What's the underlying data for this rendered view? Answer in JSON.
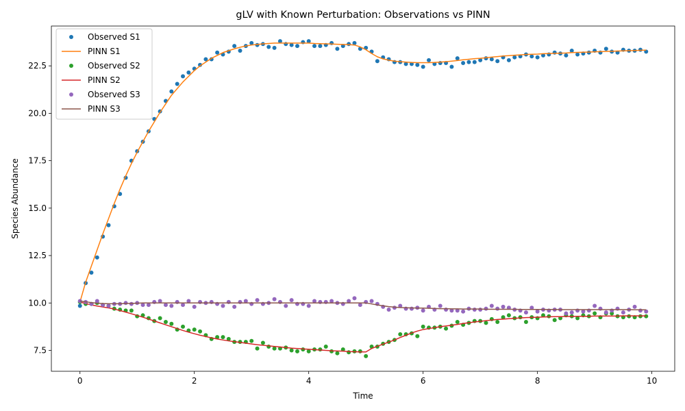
{
  "chart_data": {
    "type": "scatter",
    "title": "gLV with Known Perturbation: Observations vs PINN",
    "xlabel": "Time",
    "ylabel": "Species Abundance",
    "xlim": [
      -0.5,
      10.4
    ],
    "ylim": [
      6.4,
      24.6
    ],
    "xticks": [
      0,
      2,
      4,
      6,
      8,
      10
    ],
    "xtick_labels": [
      "0",
      "2",
      "4",
      "6",
      "8",
      "10"
    ],
    "yticks": [
      7.5,
      10.0,
      12.5,
      15.0,
      17.5,
      20.0,
      22.5
    ],
    "ytick_labels": [
      "7.5",
      "10.0",
      "12.5",
      "15.0",
      "17.5",
      "20.0",
      "22.5"
    ],
    "grid": false,
    "legend_position": "upper-left",
    "legend": [
      {
        "label": "Observed S1",
        "kind": "marker",
        "color": "#1f77b4"
      },
      {
        "label": "PINN S1",
        "kind": "line",
        "color": "#ff7f0e"
      },
      {
        "label": "Observed S2",
        "kind": "marker",
        "color": "#2ca02c"
      },
      {
        "label": "PINN S2",
        "kind": "line",
        "color": "#d62728"
      },
      {
        "label": "Observed S3",
        "kind": "marker",
        "color": "#9467bd"
      },
      {
        "label": "PINN S3",
        "kind": "line",
        "color": "#8c564b"
      }
    ],
    "x": [
      0.0,
      0.1,
      0.2,
      0.3,
      0.4,
      0.5,
      0.6,
      0.7,
      0.8,
      0.9,
      1.0,
      1.1,
      1.2,
      1.3,
      1.4,
      1.5,
      1.6,
      1.7,
      1.8,
      1.9,
      2.0,
      2.1,
      2.2,
      2.3,
      2.4,
      2.5,
      2.6,
      2.7,
      2.8,
      2.9,
      3.0,
      3.1,
      3.2,
      3.3,
      3.4,
      3.5,
      3.6,
      3.7,
      3.8,
      3.9,
      4.0,
      4.1,
      4.2,
      4.3,
      4.4,
      4.5,
      4.6,
      4.7,
      4.8,
      4.9,
      5.0,
      5.1,
      5.2,
      5.3,
      5.4,
      5.5,
      5.6,
      5.7,
      5.8,
      5.9,
      6.0,
      6.1,
      6.2,
      6.3,
      6.4,
      6.5,
      6.6,
      6.7,
      6.8,
      6.9,
      7.0,
      7.1,
      7.2,
      7.3,
      7.4,
      7.5,
      7.6,
      7.7,
      7.8,
      7.9,
      8.0,
      8.1,
      8.2,
      8.3,
      8.4,
      8.5,
      8.6,
      8.7,
      8.8,
      8.9,
      9.0,
      9.1,
      9.2,
      9.3,
      9.4,
      9.5,
      9.6,
      9.7,
      9.8,
      9.9
    ],
    "series": [
      {
        "name": "Observed S1",
        "kind": "marker",
        "color": "#1f77b4",
        "values": [
          9.85,
          11.05,
          11.6,
          12.4,
          13.5,
          14.1,
          15.1,
          15.75,
          16.6,
          17.5,
          18.0,
          18.5,
          19.05,
          19.7,
          20.1,
          20.65,
          21.15,
          21.55,
          21.95,
          22.15,
          22.35,
          22.55,
          22.85,
          22.85,
          23.2,
          23.1,
          23.25,
          23.55,
          23.3,
          23.55,
          23.7,
          23.6,
          23.65,
          23.5,
          23.45,
          23.8,
          23.65,
          23.6,
          23.55,
          23.75,
          23.8,
          23.55,
          23.55,
          23.6,
          23.7,
          23.4,
          23.55,
          23.65,
          23.7,
          23.4,
          23.45,
          23.25,
          22.75,
          22.95,
          22.85,
          22.7,
          22.7,
          22.6,
          22.6,
          22.55,
          22.45,
          22.8,
          22.6,
          22.65,
          22.65,
          22.45,
          22.9,
          22.65,
          22.7,
          22.7,
          22.8,
          22.9,
          22.85,
          22.75,
          22.95,
          22.8,
          22.95,
          23.0,
          23.1,
          23.0,
          22.95,
          23.05,
          23.1,
          23.2,
          23.15,
          23.05,
          23.3,
          23.1,
          23.15,
          23.2,
          23.3,
          23.2,
          23.4,
          23.25,
          23.2,
          23.35,
          23.3,
          23.3,
          23.35,
          23.25
        ]
      },
      {
        "name": "PINN S1",
        "kind": "line",
        "color": "#ff7f0e",
        "values": [
          10.05,
          11.1,
          11.95,
          12.8,
          13.65,
          14.45,
          15.25,
          16.0,
          16.7,
          17.35,
          17.95,
          18.5,
          19.05,
          19.55,
          20.05,
          20.5,
          20.95,
          21.3,
          21.65,
          21.95,
          22.25,
          22.5,
          22.7,
          22.9,
          23.05,
          23.2,
          23.3,
          23.4,
          23.48,
          23.55,
          23.6,
          23.63,
          23.66,
          23.68,
          23.7,
          23.7,
          23.7,
          23.7,
          23.7,
          23.7,
          23.7,
          23.68,
          23.67,
          23.66,
          23.65,
          23.64,
          23.63,
          23.62,
          23.6,
          23.5,
          23.35,
          23.15,
          22.98,
          22.87,
          22.8,
          22.75,
          22.72,
          22.7,
          22.68,
          22.67,
          22.67,
          22.67,
          22.68,
          22.7,
          22.72,
          22.75,
          22.78,
          22.82,
          22.85,
          22.88,
          22.9,
          22.93,
          22.96,
          22.99,
          23.02,
          23.04,
          23.06,
          23.08,
          23.1,
          23.11,
          23.12,
          23.14,
          23.15,
          23.16,
          23.17,
          23.18,
          23.2,
          23.21,
          23.22,
          23.23,
          23.24,
          23.25,
          23.26,
          23.27,
          23.28,
          23.29,
          23.3,
          23.31,
          23.32,
          23.33
        ]
      },
      {
        "name": "Observed S2",
        "kind": "marker",
        "color": "#2ca02c",
        "values": [
          10.05,
          9.95,
          9.95,
          10.0,
          9.9,
          9.85,
          9.7,
          9.65,
          9.6,
          9.6,
          9.3,
          9.35,
          9.2,
          9.05,
          9.2,
          9.0,
          8.9,
          8.6,
          8.75,
          8.55,
          8.6,
          8.5,
          8.3,
          8.1,
          8.2,
          8.2,
          8.1,
          7.95,
          7.95,
          7.95,
          8.0,
          7.6,
          7.9,
          7.7,
          7.6,
          7.6,
          7.65,
          7.5,
          7.45,
          7.55,
          7.45,
          7.55,
          7.55,
          7.7,
          7.45,
          7.35,
          7.55,
          7.4,
          7.45,
          7.45,
          7.2,
          7.7,
          7.7,
          7.85,
          7.95,
          8.05,
          8.35,
          8.35,
          8.4,
          8.25,
          8.75,
          8.7,
          8.7,
          8.75,
          8.65,
          8.8,
          9.0,
          8.85,
          8.95,
          9.05,
          9.05,
          8.95,
          9.15,
          9.0,
          9.25,
          9.35,
          9.2,
          9.25,
          9.0,
          9.25,
          9.2,
          9.35,
          9.3,
          9.1,
          9.2,
          9.35,
          9.3,
          9.2,
          9.35,
          9.3,
          9.45,
          9.25,
          9.45,
          9.45,
          9.3,
          9.25,
          9.3,
          9.25,
          9.3,
          9.3
        ]
      },
      {
        "name": "PINN S2",
        "kind": "line",
        "color": "#d62728",
        "values": [
          10.05,
          9.97,
          9.9,
          9.84,
          9.79,
          9.74,
          9.68,
          9.6,
          9.52,
          9.43,
          9.34,
          9.25,
          9.15,
          9.05,
          8.95,
          8.85,
          8.75,
          8.65,
          8.55,
          8.46,
          8.38,
          8.3,
          8.23,
          8.16,
          8.1,
          8.05,
          8.0,
          7.96,
          7.92,
          7.88,
          7.84,
          7.8,
          7.77,
          7.74,
          7.71,
          7.68,
          7.65,
          7.62,
          7.6,
          7.58,
          7.56,
          7.54,
          7.52,
          7.5,
          7.48,
          7.47,
          7.46,
          7.44,
          7.43,
          7.42,
          7.42,
          7.6,
          7.72,
          7.83,
          7.94,
          8.05,
          8.18,
          8.3,
          8.42,
          8.52,
          8.6,
          8.65,
          8.7,
          8.75,
          8.79,
          8.83,
          8.87,
          8.92,
          8.96,
          9.0,
          9.03,
          9.07,
          9.1,
          9.13,
          9.15,
          9.17,
          9.19,
          9.21,
          9.23,
          9.24,
          9.25,
          9.26,
          9.27,
          9.28,
          9.28,
          9.29,
          9.29,
          9.3,
          9.3,
          9.3,
          9.31,
          9.31,
          9.31,
          9.31,
          9.31,
          9.32,
          9.32,
          9.32,
          9.32,
          9.32
        ]
      },
      {
        "name": "Observed S3",
        "kind": "marker",
        "color": "#9467bd",
        "values": [
          10.1,
          10.05,
          9.95,
          10.1,
          9.9,
          9.85,
          9.95,
          9.95,
          10.0,
          9.95,
          10.0,
          9.9,
          9.9,
          10.05,
          10.1,
          9.9,
          9.85,
          10.05,
          9.9,
          10.1,
          9.8,
          10.05,
          10.0,
          10.05,
          9.95,
          9.85,
          10.05,
          9.8,
          10.05,
          10.1,
          9.95,
          10.15,
          9.95,
          10.0,
          10.2,
          10.05,
          9.85,
          10.15,
          9.95,
          9.95,
          9.85,
          10.1,
          10.05,
          10.05,
          10.1,
          10.0,
          9.95,
          10.1,
          10.25,
          9.9,
          10.05,
          10.1,
          9.95,
          9.8,
          9.65,
          9.75,
          9.85,
          9.7,
          9.7,
          9.75,
          9.6,
          9.8,
          9.65,
          9.85,
          9.65,
          9.6,
          9.6,
          9.55,
          9.7,
          9.65,
          9.65,
          9.7,
          9.85,
          9.7,
          9.8,
          9.75,
          9.65,
          9.6,
          9.5,
          9.75,
          9.55,
          9.65,
          9.6,
          9.65,
          9.65,
          9.45,
          9.5,
          9.6,
          9.55,
          9.6,
          9.85,
          9.7,
          9.5,
          9.6,
          9.7,
          9.5,
          9.65,
          9.8,
          9.6,
          9.55
        ]
      },
      {
        "name": "PINN S3",
        "kind": "line",
        "color": "#8c564b",
        "values": [
          10.1,
          10.06,
          10.02,
          9.99,
          9.97,
          9.96,
          9.96,
          9.96,
          9.97,
          9.98,
          9.99,
          10.0,
          10.0,
          10.0,
          10.0,
          10.0,
          10.0,
          10.0,
          10.0,
          10.0,
          10.0,
          10.0,
          10.0,
          10.0,
          10.0,
          10.0,
          10.0,
          10.0,
          10.0,
          10.0,
          10.0,
          10.0,
          10.0,
          10.0,
          10.0,
          10.0,
          10.0,
          10.0,
          10.0,
          10.0,
          10.0,
          10.0,
          10.0,
          10.0,
          10.0,
          10.0,
          10.0,
          10.0,
          10.0,
          10.0,
          10.0,
          9.95,
          9.9,
          9.85,
          9.81,
          9.78,
          9.76,
          9.75,
          9.74,
          9.73,
          9.73,
          9.72,
          9.71,
          9.7,
          9.7,
          9.69,
          9.69,
          9.68,
          9.68,
          9.68,
          9.68,
          9.67,
          9.67,
          9.67,
          9.67,
          9.67,
          9.67,
          9.66,
          9.66,
          9.66,
          9.66,
          9.66,
          9.66,
          9.66,
          9.65,
          9.65,
          9.65,
          9.65,
          9.65,
          9.65,
          9.65,
          9.65,
          9.65,
          9.65,
          9.65,
          9.65,
          9.65,
          9.64,
          9.64,
          9.64
        ]
      }
    ]
  }
}
